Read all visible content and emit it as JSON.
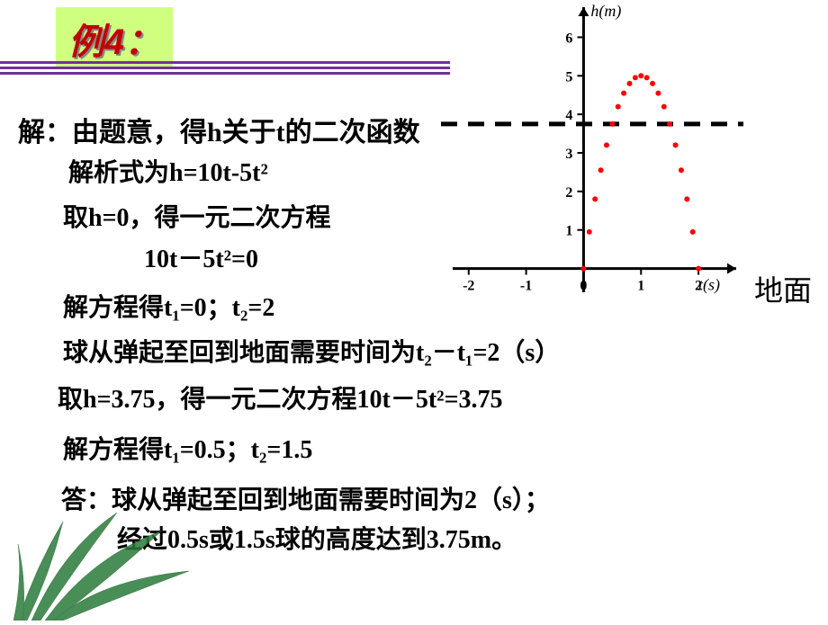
{
  "title": "例4：",
  "lines": {
    "l1": "解：由题意，得h关于t的二次函数",
    "l2": "解析式为h=10t-5t²",
    "l3": "取h=0，得一元二次方程",
    "l4": "10t－5t²=0",
    "l5": "解方程得t₁=0；t₂=2",
    "l6": "球从弹起至回到地面需要时间为t₂－t₁=2（s）",
    "l7": "取h=3.75，得一元二次方程10t－5t²=3.75",
    "l8": "解方程得t₁=0.5；t₂=1.5",
    "l9": "答：球从弹起至回到地面需要时间为2（s）；",
    "l10": "经过0.5s或1.5s球的高度达到3.75m。"
  },
  "ground_label": "地面",
  "chart": {
    "type": "scatter",
    "title_fontsize": 18,
    "x_label": "t(s)",
    "y_label": "h(m)",
    "x_label_style": "italic",
    "y_label_style": "italic",
    "label_fontsize": 18,
    "xlim": [
      -2.2,
      2.5
    ],
    "ylim": [
      -0.5,
      6.5
    ],
    "x_ticks": [
      -2,
      -1,
      0,
      1,
      2
    ],
    "y_ticks": [
      1,
      2,
      3,
      4,
      5,
      6
    ],
    "tick_fontsize": 16,
    "axis_color": "#000000",
    "axis_width": 3,
    "dashed_line_y": 3.75,
    "dashed_color": "#000000",
    "dashed_width": 5,
    "dot_color": "#ff0000",
    "dot_radius": 3,
    "background_color": "#ffffff",
    "curve_points_t": [
      0,
      0.1,
      0.2,
      0.3,
      0.4,
      0.5,
      0.6,
      0.7,
      0.8,
      0.9,
      1.0,
      1.1,
      1.2,
      1.3,
      1.4,
      1.5,
      1.6,
      1.7,
      1.8,
      1.9,
      2.0
    ],
    "curve_formula": "h = 10t - 5t^2"
  },
  "colors": {
    "title_bg": "#d0ff80",
    "title_fg": "#c00000",
    "underline": "#7030a0",
    "text": "#000000",
    "orchid_leaf": "#2a7a3a",
    "orchid_leaf_dark": "#175c26"
  }
}
